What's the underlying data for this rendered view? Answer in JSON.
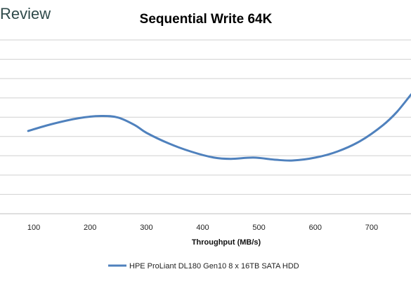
{
  "watermark": "Review",
  "chart_data": {
    "type": "line",
    "title": "Sequential Write 64K",
    "xlabel": "Throughput (MB/s)",
    "ylabel": "",
    "xlim": [
      40,
      770
    ],
    "x_ticks": [
      "100",
      "200",
      "300",
      "400",
      "500",
      "600",
      "700"
    ],
    "grid": true,
    "legend_position": "bottom",
    "series": [
      {
        "name": "HPE ProLiant DL180 Gen10 8 x 16TB SATA HDD",
        "color": "#4f81bd",
        "points": [
          [
            90,
            0.463
          ],
          [
            130,
            0.5
          ],
          [
            180,
            0.535
          ],
          [
            220,
            0.547
          ],
          [
            250,
            0.538
          ],
          [
            280,
            0.495
          ],
          [
            300,
            0.453
          ],
          [
            340,
            0.393
          ],
          [
            380,
            0.347
          ],
          [
            420,
            0.314
          ],
          [
            450,
            0.307
          ],
          [
            490,
            0.314
          ],
          [
            530,
            0.302
          ],
          [
            560,
            0.298
          ],
          [
            600,
            0.314
          ],
          [
            640,
            0.349
          ],
          [
            680,
            0.407
          ],
          [
            720,
            0.495
          ],
          [
            745,
            0.57
          ],
          [
            770,
            0.667
          ]
        ]
      }
    ]
  }
}
